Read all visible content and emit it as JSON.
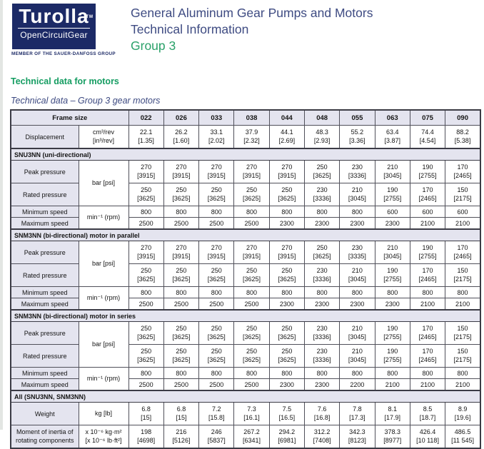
{
  "page": {
    "logo": {
      "brand": "Turolla",
      "tm": "TM",
      "subbrand": "OpenCircuitGear",
      "tagline": "MEMBER OF THE SAUER-DANFOSS GROUP"
    },
    "title_line1": "General Aluminum Gear Pumps and Motors",
    "title_line2": "Technical Information",
    "title_line3": "Group 3",
    "section_heading": "Technical data for motors",
    "table_caption": "Technical data – Group 3 gear motors"
  },
  "colors": {
    "logo_navy": "#1c2a66",
    "title_blue": "#3e4b82",
    "green": "#159d62",
    "table_header_bg": "#e4e4ef",
    "table_border": "#50505a"
  },
  "table": {
    "frame_label": "Frame size",
    "frame_sizes": [
      "022",
      "026",
      "033",
      "038",
      "044",
      "048",
      "055",
      "063",
      "075",
      "090"
    ],
    "rows": [
      {
        "type": "data",
        "two_line": true,
        "label": "Displacement",
        "unit": [
          "cm³/rev",
          "[in³/rev]"
        ],
        "unit_rows": 1,
        "cells": [
          [
            "22.1",
            "[1.35]"
          ],
          [
            "26.2",
            "[1.60]"
          ],
          [
            "33.1",
            "[2.02]"
          ],
          [
            "37.9",
            "[2.32]"
          ],
          [
            "44.1",
            "[2.69]"
          ],
          [
            "48.3",
            "[2.93]"
          ],
          [
            "55.2",
            "[3.36]"
          ],
          [
            "63.4",
            "[3.87]"
          ],
          [
            "74.4",
            "[4.54]"
          ],
          [
            "88.2",
            "[5.38]"
          ]
        ]
      },
      {
        "type": "section",
        "title": "SNU3NN (uni-directional)"
      },
      {
        "type": "data",
        "two_line": true,
        "label": "Peak pressure",
        "unit": [
          "bar [psi]"
        ],
        "unit_rows": 2,
        "cells": [
          [
            "270",
            "[3915]"
          ],
          [
            "270",
            "[3915]"
          ],
          [
            "270",
            "[3915]"
          ],
          [
            "270",
            "[3915]"
          ],
          [
            "270",
            "[3915]"
          ],
          [
            "250",
            "[3625]"
          ],
          [
            "230",
            "[3336]"
          ],
          [
            "210",
            "[3045]"
          ],
          [
            "190",
            "[2755]"
          ],
          [
            "170",
            "[2465]"
          ]
        ]
      },
      {
        "type": "data",
        "two_line": true,
        "label": "Rated pressure",
        "cells": [
          [
            "250",
            "[3625]"
          ],
          [
            "250",
            "[3625]"
          ],
          [
            "250",
            "[3625]"
          ],
          [
            "250",
            "[3625]"
          ],
          [
            "250",
            "[3625]"
          ],
          [
            "230",
            "[3336]"
          ],
          [
            "210",
            "[3045]"
          ],
          [
            "190",
            "[2755]"
          ],
          [
            "170",
            "[2465]"
          ],
          [
            "150",
            "[2175]"
          ]
        ]
      },
      {
        "type": "data",
        "two_line": false,
        "label": "Minimum speed",
        "unit": [
          "min⁻¹ (rpm)"
        ],
        "unit_rows": 2,
        "cells": [
          "800",
          "800",
          "800",
          "800",
          "800",
          "800",
          "800",
          "600",
          "600",
          "600"
        ]
      },
      {
        "type": "data",
        "two_line": false,
        "label": "Maximum speed",
        "cells": [
          "2500",
          "2500",
          "2500",
          "2500",
          "2300",
          "2300",
          "2300",
          "2300",
          "2100",
          "2100"
        ]
      },
      {
        "type": "section",
        "title": "SNM3NN (bi-directional) motor in parallel"
      },
      {
        "type": "data",
        "two_line": true,
        "label": "Peak pressure",
        "unit": [
          "bar [psi]"
        ],
        "unit_rows": 2,
        "cells": [
          [
            "270",
            "[3915]"
          ],
          [
            "270",
            "[3915]"
          ],
          [
            "270",
            "[3915]"
          ],
          [
            "270",
            "[3915]"
          ],
          [
            "270",
            "[3915]"
          ],
          [
            "250",
            "[3625]"
          ],
          [
            "230",
            "[3335]"
          ],
          [
            "210",
            "[3045]"
          ],
          [
            "190",
            "[2755]"
          ],
          [
            "170",
            "[2465]"
          ]
        ]
      },
      {
        "type": "data",
        "two_line": true,
        "label": "Rated pressure",
        "cells": [
          [
            "250",
            "[3625]"
          ],
          [
            "250",
            "[3625]"
          ],
          [
            "250",
            "[3625]"
          ],
          [
            "250",
            "[3625]"
          ],
          [
            "250",
            "[3625]"
          ],
          [
            "230",
            "[3336]"
          ],
          [
            "210",
            "[3045]"
          ],
          [
            "190",
            "[2755]"
          ],
          [
            "170",
            "[2465]"
          ],
          [
            "150",
            "[2175]"
          ]
        ]
      },
      {
        "type": "data",
        "two_line": false,
        "label": "Minimum speed",
        "unit": [
          "min⁻¹ (rpm)"
        ],
        "unit_rows": 2,
        "cells": [
          "800",
          "800",
          "800",
          "800",
          "800",
          "800",
          "800",
          "800",
          "800",
          "800"
        ]
      },
      {
        "type": "data",
        "two_line": false,
        "label": "Maximum speed",
        "cells": [
          "2500",
          "2500",
          "2500",
          "2500",
          "2300",
          "2300",
          "2300",
          "2300",
          "2100",
          "2100"
        ]
      },
      {
        "type": "section",
        "title": "SNM3NN (bi-directional) motor in series"
      },
      {
        "type": "data",
        "two_line": true,
        "label": "Peak pressure",
        "unit": [
          "bar [psi]"
        ],
        "unit_rows": 2,
        "cells": [
          [
            "250",
            "[3625]"
          ],
          [
            "250",
            "[3625]"
          ],
          [
            "250",
            "[3625]"
          ],
          [
            "250",
            "[3625]"
          ],
          [
            "250",
            "[3625]"
          ],
          [
            "230",
            "[3336]"
          ],
          [
            "210",
            "[3045]"
          ],
          [
            "190",
            "[2755]"
          ],
          [
            "170",
            "[2465]"
          ],
          [
            "150",
            "[2175]"
          ]
        ]
      },
      {
        "type": "data",
        "two_line": true,
        "label": "Rated pressure",
        "cells": [
          [
            "250",
            "[3625]"
          ],
          [
            "250",
            "[3625]"
          ],
          [
            "250",
            "[3625]"
          ],
          [
            "250",
            "[3625]"
          ],
          [
            "250",
            "[3625]"
          ],
          [
            "230",
            "[3336]"
          ],
          [
            "210",
            "[3045]"
          ],
          [
            "190",
            "[2755]"
          ],
          [
            "170",
            "[2465]"
          ],
          [
            "150",
            "[2175]"
          ]
        ]
      },
      {
        "type": "data",
        "two_line": false,
        "label": "Minimum speed",
        "unit": [
          "min⁻¹ (rpm)"
        ],
        "unit_rows": 2,
        "cells": [
          "800",
          "800",
          "800",
          "800",
          "800",
          "800",
          "800",
          "800",
          "800",
          "800"
        ]
      },
      {
        "type": "data",
        "two_line": false,
        "label": "Maximum speed",
        "cells": [
          "2500",
          "2500",
          "2500",
          "2500",
          "2300",
          "2300",
          "2200",
          "2100",
          "2100",
          "2100"
        ]
      },
      {
        "type": "section",
        "title": "All  (SNU3NN, SNM3NN)"
      },
      {
        "type": "data",
        "two_line": true,
        "label": "Weight",
        "unit": [
          "kg [lb]"
        ],
        "unit_rows": 1,
        "cells": [
          [
            "6.8",
            "[15]"
          ],
          [
            "6.8",
            "[15]"
          ],
          [
            "7.2",
            "[15.8]"
          ],
          [
            "7.3",
            "[16.1]"
          ],
          [
            "7.5",
            "[16.5]"
          ],
          [
            "7.6",
            "[16.8]"
          ],
          [
            "7.8",
            "[17.3]"
          ],
          [
            "8.1",
            "[17.9]"
          ],
          [
            "8.5",
            "[18.7]"
          ],
          [
            "8.9",
            "[19.6]"
          ]
        ]
      },
      {
        "type": "data",
        "two_line": true,
        "label": [
          "Moment of inertia of",
          "rotating components"
        ],
        "unit": [
          "x 10⁻⁶ kg·m²",
          "[x 10⁻⁶ lb·ft²]"
        ],
        "unit_rows": 1,
        "cells": [
          [
            "198",
            "[4698]"
          ],
          [
            "216",
            "[5126]"
          ],
          [
            "246",
            "[5837]"
          ],
          [
            "267.2",
            "[6341]"
          ],
          [
            "294.2",
            "[6981]"
          ],
          [
            "312.2",
            "[7408]"
          ],
          [
            "342.3",
            "[8123]"
          ],
          [
            "378.3",
            "[8977]"
          ],
          [
            "426.4",
            "[10 118]"
          ],
          [
            "486.5",
            "[11 545]"
          ]
        ]
      }
    ]
  }
}
